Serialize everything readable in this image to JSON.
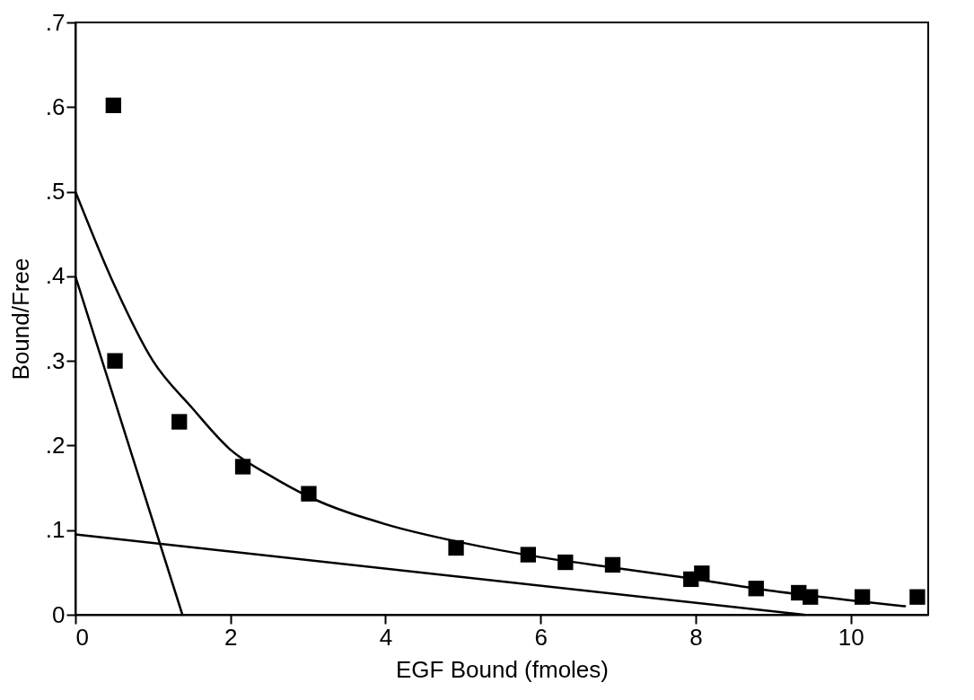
{
  "chart_data": {
    "type": "scatter",
    "xlabel": "EGF  Bound  (fmoles)",
    "ylabel": "Bound/Free",
    "xlim": [
      0,
      11
    ],
    "ylim": [
      0,
      0.7
    ],
    "xticks": [
      0,
      2,
      4,
      6,
      8,
      10
    ],
    "yticks": [
      0,
      {
        "value": 0.1,
        "label": ".1"
      },
      {
        "value": 0.2,
        "label": ".2"
      },
      {
        "value": 0.3,
        "label": ".3"
      },
      {
        "value": 0.4,
        "label": ".4"
      },
      {
        "value": 0.5,
        "label": ".5"
      },
      {
        "value": 0.6,
        "label": ".6"
      },
      {
        "value": 0.7,
        "label": ".7"
      }
    ],
    "grid": false,
    "marker": "square",
    "series": [
      {
        "color": "#000000",
        "x": [
          0.49,
          0.51,
          1.34,
          2.16,
          3.01,
          4.91,
          5.84,
          6.32,
          6.93,
          7.94,
          8.08,
          8.78,
          9.33,
          9.48,
          10.15,
          10.86
        ],
        "values": [
          0.602,
          0.3,
          0.228,
          0.175,
          0.143,
          0.079,
          0.071,
          0.062,
          0.059,
          0.042,
          0.049,
          0.031,
          0.026,
          0.021,
          0.021,
          0.021
        ]
      },
      {
        "type": "line",
        "color": "#000000",
        "line_style": "solid",
        "marker": "none",
        "x": [
          0,
          0.5,
          1,
          1.5,
          2,
          2.5,
          3,
          4,
          5,
          6,
          7,
          8,
          9,
          10,
          10.7
        ],
        "values": [
          0.5,
          0.39,
          0.3,
          0.245,
          0.195,
          0.165,
          0.14,
          0.107,
          0.085,
          0.068,
          0.055,
          0.042,
          0.028,
          0.017,
          0.01
        ]
      },
      {
        "type": "line",
        "color": "#000000",
        "line_style": "solid",
        "marker": "none",
        "x": [
          0,
          1.38
        ],
        "values": [
          0.4,
          0
        ]
      },
      {
        "type": "line",
        "color": "#000000",
        "line_style": "solid",
        "marker": "none",
        "x": [
          0,
          9.4
        ],
        "values": [
          0.095,
          0
        ]
      }
    ]
  }
}
